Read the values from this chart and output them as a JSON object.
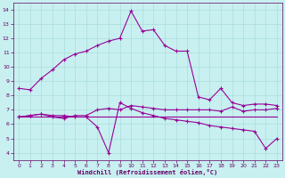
{
  "x": [
    0,
    1,
    2,
    3,
    4,
    5,
    6,
    7,
    8,
    9,
    10,
    11,
    12,
    13,
    14,
    15,
    16,
    17,
    18,
    19,
    20,
    21,
    22,
    23
  ],
  "line1": [
    8.5,
    8.4,
    9.2,
    9.8,
    10.5,
    10.9,
    11.1,
    11.5,
    11.8,
    12.0,
    13.9,
    12.5,
    12.6,
    11.5,
    11.1,
    11.1,
    7.9,
    7.7,
    8.5,
    7.5,
    7.3,
    7.4,
    7.4,
    7.3
  ],
  "line2": [
    6.5,
    6.6,
    6.7,
    6.5,
    6.4,
    6.6,
    6.6,
    7.0,
    7.1,
    7.0,
    7.3,
    7.2,
    7.1,
    7.0,
    7.0,
    7.0,
    7.0,
    7.0,
    6.9,
    7.2,
    6.9,
    7.0,
    7.0,
    7.1
  ],
  "line3": [
    6.5,
    6.6,
    6.7,
    6.6,
    6.6,
    6.5,
    6.5,
    5.8,
    4.0,
    7.5,
    7.1,
    6.8,
    6.6,
    6.4,
    6.3,
    6.2,
    6.1,
    5.9,
    5.8,
    5.7,
    5.6,
    5.5,
    4.3,
    5.0
  ],
  "line4": [
    6.5,
    6.5,
    6.5,
    6.5,
    6.5,
    6.5,
    6.5,
    6.5,
    6.5,
    6.5,
    6.5,
    6.5,
    6.5,
    6.5,
    6.5,
    6.5,
    6.5,
    6.5,
    6.5,
    6.5,
    6.5,
    6.5,
    6.5,
    6.5
  ],
  "line_color": "#990099",
  "bg_color": "#c8f0f0",
  "grid_color": "#aadddd",
  "axis_color": "#660066",
  "xlabel": "Windchill (Refroidissement éolien,°C)",
  "ylim": [
    3.5,
    14.5
  ],
  "xlim": [
    -0.5,
    23.5
  ],
  "yticks": [
    4,
    5,
    6,
    7,
    8,
    9,
    10,
    11,
    12,
    13,
    14
  ],
  "xticks": [
    0,
    1,
    2,
    3,
    4,
    5,
    6,
    7,
    8,
    9,
    10,
    11,
    12,
    13,
    14,
    15,
    16,
    17,
    18,
    19,
    20,
    21,
    22,
    23
  ]
}
